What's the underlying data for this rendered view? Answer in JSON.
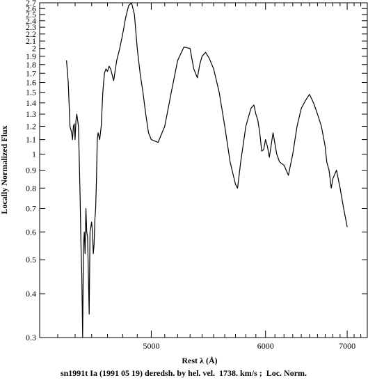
{
  "chart_data": {
    "type": "line",
    "title": "",
    "xlabel": "Rest λ (Å)",
    "ylabel": "Locally Normalized Flux",
    "caption": "sn1991t Ia (1991 05 19) deredsh. by hel. vel.  1738. km/s ;  Loc. Norm.",
    "x_scale": "reciprocal",
    "y_scale": "log",
    "xlim": [
      4300,
      7300
    ],
    "ylim": [
      0.3,
      2.7
    ],
    "grid": false,
    "x_ticks": [
      5000,
      6000,
      7000
    ],
    "x_minor_ticks": [
      4400,
      4500,
      4600,
      4700,
      4800,
      4900,
      5100,
      5200,
      5300,
      5400,
      5500,
      5600,
      5700,
      5800,
      5900,
      6100,
      6200,
      6300,
      6400,
      6500,
      6600,
      6700,
      6800,
      6900,
      7100,
      7200,
      7300
    ],
    "y_ticks": [
      0.3,
      0.4,
      0.5,
      0.6,
      0.7,
      0.8,
      0.9,
      1,
      1.1,
      1.2,
      1.3,
      1.4,
      1.5,
      1.6,
      1.7,
      1.8,
      1.9,
      2,
      2.1,
      2.2,
      2.3,
      2.4,
      2.5,
      2.6,
      2.7
    ],
    "series": [
      {
        "name": "",
        "x": [
          4450,
          4460,
          4470,
          4480,
          4485,
          4490,
          4495,
          4500,
          4505,
          4510,
          4520,
          4525,
          4530,
          4535,
          4540,
          4545,
          4550,
          4555,
          4560,
          4565,
          4570,
          4575,
          4580,
          4585,
          4590,
          4595,
          4600,
          4605,
          4610,
          4615,
          4620,
          4625,
          4630,
          4635,
          4640,
          4650,
          4660,
          4670,
          4680,
          4690,
          4700,
          4710,
          4720,
          4740,
          4760,
          4780,
          4800,
          4820,
          4840,
          4860,
          4880,
          4900,
          4920,
          4940,
          4960,
          4980,
          5000,
          5050,
          5100,
          5150,
          5200,
          5250,
          5300,
          5330,
          5360,
          5380,
          5400,
          5430,
          5460,
          5500,
          5550,
          5600,
          5650,
          5700,
          5720,
          5750,
          5800,
          5850,
          5880,
          5900,
          5920,
          5940,
          5960,
          5980,
          6000,
          6020,
          6040,
          6080,
          6120,
          6150,
          6200,
          6250,
          6300,
          6350,
          6400,
          6450,
          6500,
          6550,
          6600,
          6650,
          6700,
          6720,
          6750,
          6780,
          6800,
          6850,
          6900,
          6950,
          7000
        ],
        "y": [
          1.85,
          1.6,
          1.2,
          1.15,
          1.1,
          1.2,
          1.22,
          1.1,
          1.25,
          1.3,
          1.2,
          0.95,
          0.75,
          0.55,
          0.45,
          0.3,
          0.55,
          0.6,
          0.52,
          0.7,
          0.6,
          0.58,
          0.45,
          0.35,
          0.6,
          0.62,
          0.64,
          0.6,
          0.52,
          0.55,
          0.65,
          0.7,
          0.85,
          1.1,
          1.15,
          1.1,
          1.2,
          1.5,
          1.7,
          1.75,
          1.72,
          1.78,
          1.75,
          1.62,
          1.85,
          2.0,
          2.2,
          2.45,
          2.65,
          2.7,
          2.5,
          2.0,
          1.7,
          1.5,
          1.3,
          1.15,
          1.1,
          1.08,
          1.2,
          1.5,
          1.85,
          2.02,
          2.0,
          1.75,
          1.65,
          1.8,
          1.9,
          1.95,
          1.88,
          1.75,
          1.5,
          1.2,
          0.95,
          0.82,
          0.8,
          0.95,
          1.2,
          1.35,
          1.38,
          1.3,
          1.25,
          1.15,
          1.02,
          1.03,
          1.1,
          1.05,
          0.98,
          1.15,
          1.0,
          0.95,
          0.93,
          0.87,
          1.0,
          1.2,
          1.35,
          1.42,
          1.48,
          1.4,
          1.3,
          1.2,
          1.05,
          0.95,
          0.9,
          0.8,
          0.85,
          0.9,
          0.8,
          0.7,
          0.62
        ]
      }
    ]
  }
}
